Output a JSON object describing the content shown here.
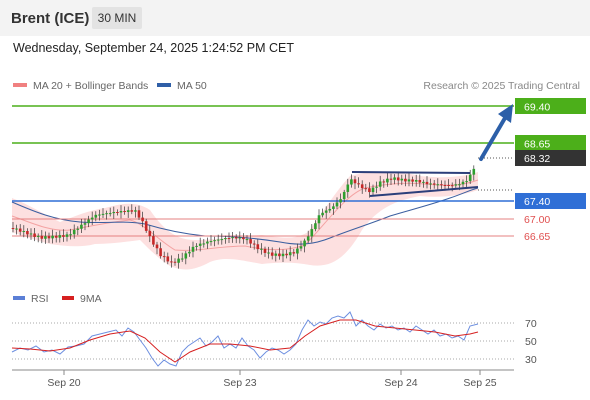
{
  "header": {
    "title": "Brent (ICE)",
    "timeframe": "30 MIN"
  },
  "timestamp": "Wednesday, September 24, 2025 1:24:52 PM CET",
  "legend": {
    "bollinger": {
      "label": "MA 20 + Bollinger Bands",
      "color": "#f08080"
    },
    "ma50": {
      "label": "MA 50",
      "color": "#2f5fa7"
    }
  },
  "copyright": "Research © 2025 Trading Central",
  "rsi_legend": {
    "rsi": {
      "label": "RSI",
      "color": "#5b7fd6"
    },
    "ma": {
      "label": "9MA",
      "color": "#d62020"
    }
  },
  "price_levels": [
    {
      "value": "69.40",
      "kind": "resistance",
      "color": "#4caf1a"
    },
    {
      "value": "68.65",
      "kind": "resistance",
      "color": "#4caf1a"
    },
    {
      "value": "68.32",
      "kind": "last",
      "color": "#333333"
    },
    {
      "value": "67.40",
      "kind": "pivot",
      "color": "#2f6fd6"
    },
    {
      "value": "67.00",
      "kind": "support",
      "color": "#e06060"
    },
    {
      "value": "66.65",
      "kind": "support",
      "color": "#e06060"
    }
  ],
  "rsi_levels": [
    "70",
    "50",
    "30"
  ],
  "x_labels": [
    "Sep 20",
    "Sep 23",
    "Sep 24",
    "Sep 25"
  ]
}
